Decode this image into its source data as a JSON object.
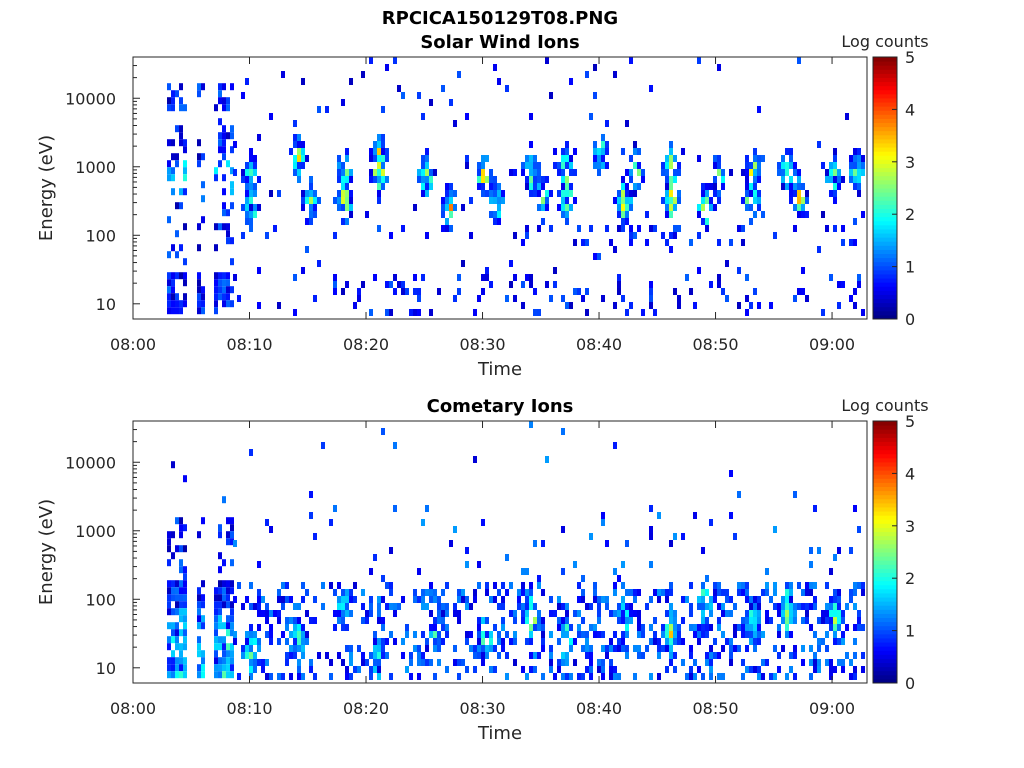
{
  "figure_title": "RPCICA150129T08.PNG",
  "chart_data": [
    {
      "type": "heatmap",
      "title": "Solar Wind Ions",
      "xlabel": "Time",
      "ylabel": "Energy (eV)",
      "x_ticks": [
        "08:00",
        "08:10",
        "08:20",
        "08:30",
        "08:40",
        "08:50",
        "09:00"
      ],
      "xlim": [
        "08:00",
        "09:03"
      ],
      "y_scale": "log",
      "y_ticks": [
        "10",
        "100",
        "1000",
        "10000"
      ],
      "ylim": [
        6,
        40000
      ],
      "colorbar": {
        "label": "Log counts",
        "ticks": [
          "0",
          "1",
          "2",
          "3",
          "4",
          "5"
        ],
        "range": [
          0,
          5
        ],
        "colormap": "jet"
      },
      "bursts": [
        {
          "t": "08:10",
          "e": 850,
          "v": 1.8
        },
        {
          "t": "08:10",
          "e": 300,
          "v": 2.2
        },
        {
          "t": "08:14",
          "e": 1600,
          "v": 2.6
        },
        {
          "t": "08:15",
          "e": 330,
          "v": 2.4
        },
        {
          "t": "08:18",
          "e": 1000,
          "v": 2.3
        },
        {
          "t": "08:18",
          "e": 350,
          "v": 2.8
        },
        {
          "t": "08:21",
          "e": 1700,
          "v": 2.5
        },
        {
          "t": "08:21",
          "e": 850,
          "v": 2.9
        },
        {
          "t": "08:25",
          "e": 800,
          "v": 2.4
        },
        {
          "t": "08:27",
          "e": 320,
          "v": 3.1
        },
        {
          "t": "08:30",
          "e": 800,
          "v": 2.5
        },
        {
          "t": "08:31",
          "e": 350,
          "v": 2.6
        },
        {
          "t": "08:34",
          "e": 1000,
          "v": 2.6
        },
        {
          "t": "08:35",
          "e": 450,
          "v": 2.4
        },
        {
          "t": "08:37",
          "e": 1000,
          "v": 3.0
        },
        {
          "t": "08:37",
          "e": 380,
          "v": 2.9
        },
        {
          "t": "08:40",
          "e": 1600,
          "v": 2.2
        },
        {
          "t": "08:42",
          "e": 350,
          "v": 2.8
        },
        {
          "t": "08:43",
          "e": 1000,
          "v": 2.5
        },
        {
          "t": "08:46",
          "e": 1000,
          "v": 2.9
        },
        {
          "t": "08:46",
          "e": 400,
          "v": 2.7
        },
        {
          "t": "08:49",
          "e": 300,
          "v": 2.3
        },
        {
          "t": "08:50",
          "e": 800,
          "v": 2.2
        },
        {
          "t": "08:53",
          "e": 1000,
          "v": 2.7
        },
        {
          "t": "08:53",
          "e": 380,
          "v": 2.8
        },
        {
          "t": "08:56",
          "e": 1000,
          "v": 2.5
        },
        {
          "t": "08:57",
          "e": 400,
          "v": 2.4
        },
        {
          "t": "09:00",
          "e": 800,
          "v": 2.4
        },
        {
          "t": "09:02",
          "e": 1000,
          "v": 2.3
        }
      ]
    },
    {
      "type": "heatmap",
      "title": "Cometary Ions",
      "xlabel": "Time",
      "ylabel": "Energy (eV)",
      "x_ticks": [
        "08:00",
        "08:10",
        "08:20",
        "08:30",
        "08:40",
        "08:50",
        "09:00"
      ],
      "xlim": [
        "08:00",
        "09:03"
      ],
      "y_scale": "log",
      "y_ticks": [
        "10",
        "100",
        "1000",
        "10000"
      ],
      "ylim": [
        6,
        40000
      ],
      "colorbar": {
        "label": "Log counts",
        "ticks": [
          "0",
          "1",
          "2",
          "3",
          "4",
          "5"
        ],
        "range": [
          0,
          5
        ],
        "colormap": "jet"
      },
      "bursts": [
        {
          "t": "08:03",
          "e": 12,
          "v": 2.0
        },
        {
          "t": "08:07",
          "e": 60,
          "v": 1.8
        },
        {
          "t": "08:10",
          "e": 20,
          "v": 2.0
        },
        {
          "t": "08:14",
          "e": 30,
          "v": 1.8
        },
        {
          "t": "08:18",
          "e": 80,
          "v": 1.9
        },
        {
          "t": "08:21",
          "e": 15,
          "v": 1.8
        },
        {
          "t": "08:26",
          "e": 40,
          "v": 1.9
        },
        {
          "t": "08:30",
          "e": 30,
          "v": 1.8
        },
        {
          "t": "08:34",
          "e": 60,
          "v": 2.0
        },
        {
          "t": "08:37",
          "e": 30,
          "v": 2.0
        },
        {
          "t": "08:42",
          "e": 70,
          "v": 1.9
        },
        {
          "t": "08:46",
          "e": 40,
          "v": 2.0
        },
        {
          "t": "08:49",
          "e": 100,
          "v": 2.1
        },
        {
          "t": "08:53",
          "e": 50,
          "v": 2.0
        },
        {
          "t": "08:56",
          "e": 80,
          "v": 2.1
        },
        {
          "t": "09:00",
          "e": 60,
          "v": 2.0
        }
      ]
    }
  ]
}
